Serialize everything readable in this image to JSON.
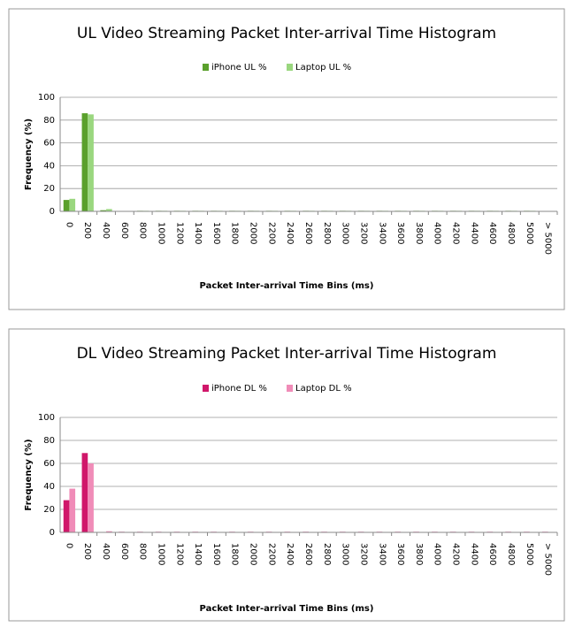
{
  "chart_data": [
    {
      "type": "bar",
      "title": "UL Video Streaming Packet Inter-arrival Time Histogram",
      "xlabel": "Packet Inter-arrival Time Bins (ms)",
      "ylabel": "Frequency (%)",
      "categories": [
        "0",
        "200",
        "400",
        "600",
        "800",
        "1000",
        "1200",
        "1400",
        "1600",
        "1800",
        "2000",
        "2200",
        "2400",
        "2600",
        "2800",
        "3000",
        "3200",
        "3400",
        "3600",
        "3800",
        "4000",
        "4200",
        "4400",
        "4600",
        "4800",
        "5000",
        "> 5000"
      ],
      "series": [
        {
          "name": "iPhone UL %",
          "color": "#5aa02c",
          "values": [
            10,
            86,
            1,
            0.3,
            0.5,
            0.5,
            0.5,
            0.5,
            0.5,
            0.5,
            0.5,
            0.5,
            0.5,
            0.5,
            0.5,
            0.5,
            0.5,
            0.5,
            0.5,
            0.5,
            0.5,
            0.5,
            0.5,
            0.5,
            0.5,
            0.5,
            0
          ]
        },
        {
          "name": "Laptop UL %",
          "color": "#9ad77f",
          "values": [
            11,
            85,
            2,
            0.3,
            0.5,
            0.5,
            0.5,
            0.5,
            0.5,
            0.5,
            0.5,
            0.5,
            0.5,
            0.5,
            0.5,
            0.5,
            0.5,
            0.5,
            0.5,
            0.5,
            0.5,
            0.5,
            0.5,
            0.5,
            0.5,
            0.5,
            0
          ]
        }
      ],
      "ylim": [
        0,
        100
      ],
      "yticks": [
        0,
        20,
        40,
        60,
        80,
        100
      ],
      "grid": true
    },
    {
      "type": "bar",
      "title": "DL Video Streaming Packet Inter-arrival Time Histogram",
      "xlabel": "Packet Inter-arrival Time Bins (ms)",
      "ylabel": "Frequency (%)",
      "categories": [
        "0",
        "200",
        "400",
        "600",
        "800",
        "1000",
        "1200",
        "1400",
        "1600",
        "1800",
        "2000",
        "2200",
        "2400",
        "2600",
        "2800",
        "3000",
        "3200",
        "3400",
        "3600",
        "3800",
        "4000",
        "4200",
        "4400",
        "4600",
        "4800",
        "5000",
        "> 5000"
      ],
      "series": [
        {
          "name": "iPhone DL %",
          "color": "#d0176a",
          "values": [
            28,
            69,
            0.3,
            0.5,
            0.5,
            0.5,
            0.5,
            0.5,
            0.5,
            0.5,
            0.5,
            0.5,
            0.5,
            0.5,
            0.5,
            0.5,
            0.5,
            0.5,
            0.5,
            0.5,
            0.5,
            0.5,
            0.5,
            0.5,
            0.5,
            0.5,
            0.5
          ]
        },
        {
          "name": "Laptop DL %",
          "color": "#f08cb8",
          "values": [
            38,
            60,
            1,
            0.3,
            0.3,
            0.3,
            0.3,
            0.3,
            0.3,
            0.3,
            0.3,
            0.3,
            0.3,
            0.3,
            0.3,
            0.3,
            0.3,
            0.3,
            0.3,
            0.3,
            0.3,
            0.3,
            0.3,
            0.3,
            0.3,
            0.3,
            0.3
          ]
        }
      ],
      "ylim": [
        0,
        100
      ],
      "yticks": [
        0,
        20,
        40,
        60,
        80,
        100
      ],
      "grid": true
    }
  ]
}
